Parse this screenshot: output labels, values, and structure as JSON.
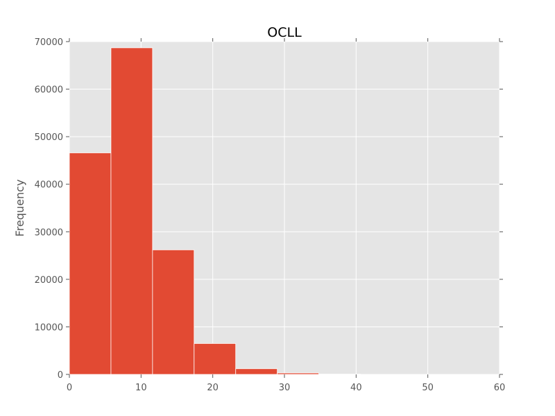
{
  "chart_data": {
    "type": "bar",
    "title": "OCLL",
    "xlabel": "",
    "ylabel": "Frequency",
    "xlim": [
      0,
      60
    ],
    "ylim": [
      0,
      70000
    ],
    "xticks": [
      0,
      10,
      20,
      30,
      40,
      50,
      60
    ],
    "yticks": [
      0,
      10000,
      20000,
      30000,
      40000,
      50000,
      60000,
      70000
    ],
    "bins": [
      {
        "start": 0,
        "end": 5.8,
        "value": 46600
      },
      {
        "start": 5.8,
        "end": 11.6,
        "value": 68700
      },
      {
        "start": 11.6,
        "end": 17.4,
        "value": 26200
      },
      {
        "start": 17.4,
        "end": 23.2,
        "value": 6500
      },
      {
        "start": 23.2,
        "end": 29.0,
        "value": 1200
      },
      {
        "start": 29.0,
        "end": 34.8,
        "value": 300
      },
      {
        "start": 34.8,
        "end": 40.6,
        "value": 60
      },
      {
        "start": 40.6,
        "end": 46.4,
        "value": 15
      },
      {
        "start": 46.4,
        "end": 52.2,
        "value": 5
      },
      {
        "start": 52.2,
        "end": 58.0,
        "value": 2
      }
    ],
    "grid": true,
    "colors": {
      "bar": "#E24A33",
      "plot_background": "#E5E5E5",
      "grid": "#FFFFFF",
      "tick_text": "#555555"
    }
  }
}
